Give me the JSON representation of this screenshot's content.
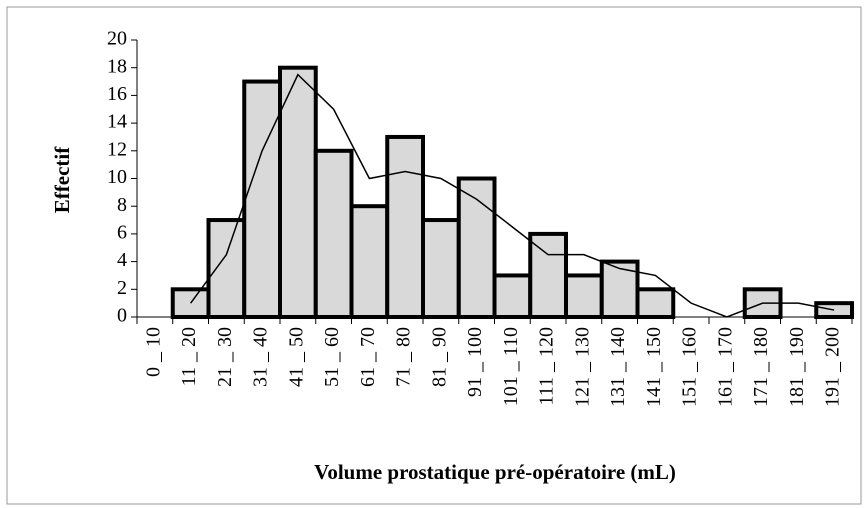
{
  "chart_data": {
    "type": "bar",
    "x_label": "Volume prostatique pré-opératoire (mL)",
    "y_label": "Effectif",
    "categories": [
      "0 _ 10",
      "11 _ 20",
      "21 _ 30",
      "31 _ 40",
      "41 _ 50",
      "51 _ 60",
      "61 _ 70",
      "71 _ 80",
      "81 _ 90",
      "91 _ 100",
      "101 _ 110",
      "111 _ 120",
      "121 _ 130",
      "131 _ 140",
      "141 _ 150",
      "151 _ 160",
      "161 _ 170",
      "171 _ 180",
      "181 _ 190",
      "191 _ 200"
    ],
    "series": [
      {
        "type": "bar",
        "color": "#d9d9d9",
        "values": [
          0,
          2,
          7,
          17,
          18,
          12,
          8,
          13,
          7,
          10,
          3,
          6,
          3,
          4,
          2,
          0,
          0,
          2,
          0,
          1
        ]
      },
      {
        "type": "line",
        "color": "#000000",
        "values": [
          null,
          1,
          4.5,
          12,
          17.5,
          15,
          10,
          10.5,
          10,
          8.5,
          6.5,
          4.5,
          4.5,
          3.5,
          3,
          1,
          0,
          1,
          1,
          0.5
        ]
      }
    ],
    "ylim": [
      0,
      20
    ],
    "yticks": [
      0,
      2,
      4,
      6,
      8,
      10,
      12,
      14,
      16,
      18,
      20
    ],
    "grid": false
  }
}
